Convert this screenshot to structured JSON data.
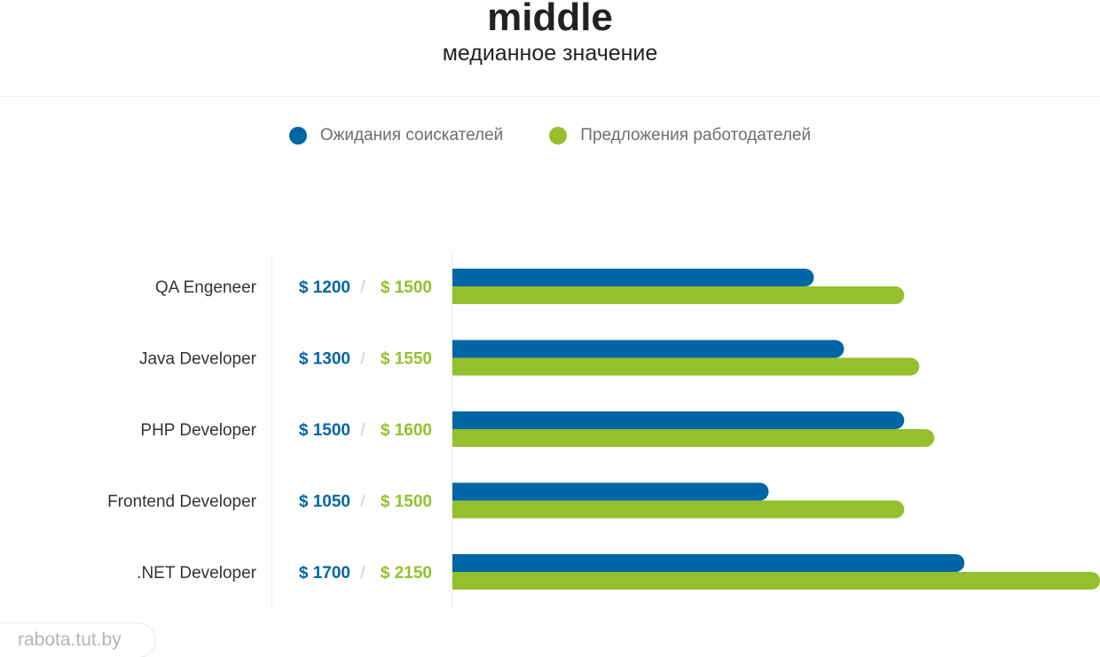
{
  "header": {
    "title": "middle",
    "subtitle": "медианное значение"
  },
  "legend": [
    {
      "label": "Ожидания соискателей",
      "color": "#0066a5"
    },
    {
      "label": "Предложения работодателей",
      "color": "#95c02d"
    }
  ],
  "value_separator": "/",
  "chart_data": {
    "type": "bar",
    "orientation": "horizontal",
    "categories": [
      "QA Engeneer",
      "Java Developer",
      "PHP Developer",
      "Frontend Developer",
      ".NET Developer"
    ],
    "series": [
      {
        "name": "Ожидания соискателей",
        "color": "#0066a5",
        "values": [
          1200,
          1300,
          1500,
          1050,
          1700
        ],
        "labels": [
          "$ 1200",
          "$ 1300",
          "$ 1500",
          "$ 1050",
          "$ 1700"
        ]
      },
      {
        "name": "Предложения работодателей",
        "color": "#95c02d",
        "values": [
          1500,
          1550,
          1600,
          1500,
          2150
        ],
        "labels": [
          "$ 1500",
          "$ 1550",
          "$ 1600",
          "$ 1500",
          "$ 2150"
        ]
      }
    ],
    "xlim": [
      0,
      2150
    ],
    "grid": false,
    "legend_position": "top-center"
  },
  "watermark": "rabota.tut.by"
}
